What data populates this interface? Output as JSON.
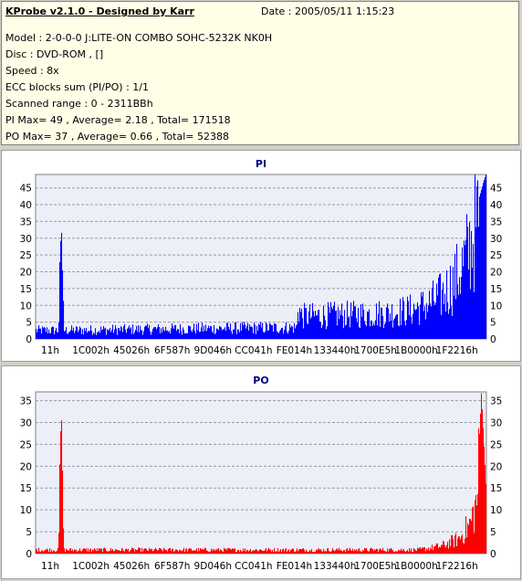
{
  "header": {
    "app_title": "KProbe v2.1.0 - Designed by Karr",
    "date": "Date : 2005/05/11 1:15:23",
    "model": "Model : 2-0-0-0 J:LITE-ON COMBO SOHC-5232K NK0H",
    "disc": "Disc : DVD-ROM ,  []",
    "speed": "Speed : 8x",
    "ecc": "ECC blocks sum (PI/PO) : 1/1",
    "range": "Scanned range : 0 - 2311BBh",
    "pi_stats": "PI Max= 49 , Average= 2.18 , Total= 171518",
    "po_stats": "PO Max= 37 , Average= 0.66 , Total= 52388"
  },
  "colors": {
    "pi_series": "#0000ff",
    "po_series": "#ff0000",
    "plot_background": "#eceef8",
    "grid": "#9a9aa8"
  },
  "chart_data": [
    {
      "type": "bar",
      "title": "PI",
      "xlabel": "",
      "ylabel": "",
      "ylim": [
        0,
        49
      ],
      "yticks": [
        0,
        5,
        10,
        15,
        20,
        25,
        30,
        35,
        40,
        45
      ],
      "y_axis_both_sides": true,
      "grid": true,
      "x_tick_labels": [
        "11h",
        "1C002h",
        "45026h",
        "6F587h",
        "9D046h",
        "CC041h",
        "FE014h",
        "133440h",
        "1700E5h",
        "1B0000h",
        "1F2216h"
      ],
      "series": [
        {
          "color": "#0000ff",
          "profile": [
            [
              0,
              3
            ],
            [
              0.05,
              3
            ],
            [
              0.056,
              36
            ],
            [
              0.062,
              3
            ],
            [
              0.3,
              3.5
            ],
            [
              0.58,
              4
            ],
            [
              0.582,
              12
            ],
            [
              0.59,
              8
            ],
            [
              0.6,
              8
            ],
            [
              0.7,
              8.5
            ],
            [
              0.78,
              9
            ],
            [
              0.83,
              10
            ],
            [
              0.87,
              12
            ],
            [
              0.9,
              15
            ],
            [
              0.93,
              20
            ],
            [
              0.955,
              28
            ],
            [
              0.97,
              35
            ],
            [
              0.985,
              42
            ],
            [
              0.995,
              47
            ],
            [
              1.0,
              49
            ]
          ]
        }
      ]
    },
    {
      "type": "bar",
      "title": "PO",
      "xlabel": "",
      "ylabel": "",
      "ylim": [
        0,
        37
      ],
      "yticks": [
        0,
        5,
        10,
        15,
        20,
        25,
        30,
        35
      ],
      "y_axis_both_sides": true,
      "grid": true,
      "x_tick_labels": [
        "11h",
        "1C002h",
        "45026h",
        "6F587h",
        "9D046h",
        "CC041h",
        "FE014h",
        "133440h",
        "1700E5h",
        "1B0000h",
        "1F2216h"
      ],
      "series": [
        {
          "color": "#ff0000",
          "profile": [
            [
              0,
              1
            ],
            [
              0.05,
              1
            ],
            [
              0.056,
              35
            ],
            [
              0.062,
              1
            ],
            [
              0.5,
              1
            ],
            [
              0.85,
              1
            ],
            [
              0.9,
              2
            ],
            [
              0.94,
              4
            ],
            [
              0.965,
              8
            ],
            [
              0.98,
              14
            ],
            [
              0.99,
              37
            ],
            [
              1.0,
              16
            ]
          ]
        }
      ]
    }
  ]
}
